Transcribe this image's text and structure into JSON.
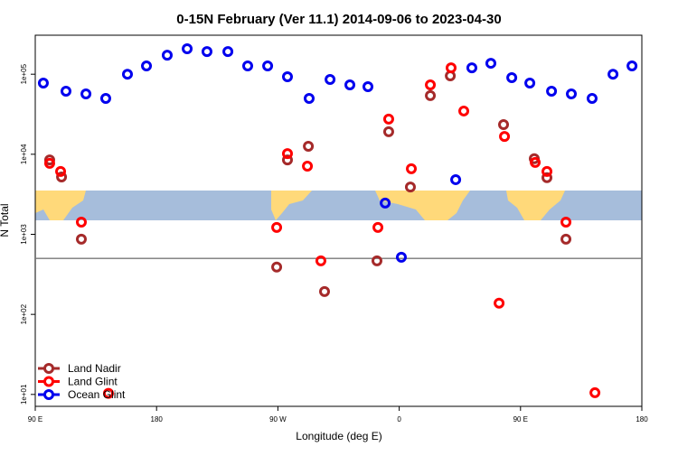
{
  "chart_data": {
    "type": "scatter",
    "title": "0-15N February (Ver 11.1)   2014-09-06 to 2023-04-30",
    "x_label": "Longitude (deg E)",
    "y_label": "N Total",
    "log_y": true,
    "xlim": [
      -270,
      180
    ],
    "xticks": [
      {
        "value": -270,
        "label": "90 E"
      },
      {
        "value": -180,
        "label": "180"
      },
      {
        "value": -90,
        "label": "90 W"
      },
      0,
      {
        "value": 90,
        "label": "90 E"
      },
      180
    ],
    "ylim": [
      7.1,
      307000
    ],
    "yticks": [
      {
        "value": 10,
        "label": "1e+01"
      },
      {
        "value": 100,
        "label": "1e+02"
      },
      {
        "value": 1000,
        "label": "1e+03"
      },
      {
        "value": 10000,
        "label": "1e+04"
      },
      {
        "value": 100000,
        "label": "1e+05"
      }
    ],
    "hline": 500,
    "legend": "bottom-left",
    "series": [
      {
        "name": "Land Nadir",
        "color": "#a52a2a",
        "x": [
          -259.3,
          -250.5,
          -235.8,
          -90.9,
          -82.9,
          -67.4,
          -55.4,
          -16.5,
          -7.8,
          8.3,
          23.1,
          37.9,
          77.4,
          100.2,
          109.6,
          123.7
        ],
        "values": [
          8500,
          5200,
          870,
          390,
          8500,
          12600,
          193,
          466,
          19100,
          3900,
          54000,
          95500,
          23500,
          8800,
          5100,
          870
        ]
      },
      {
        "name": "Land Glint",
        "color": "#ff0000",
        "x": [
          -259.3,
          -251.2,
          -235.8,
          -215.7,
          -90.9,
          -82.9,
          -68.1,
          -58.1,
          -15.8,
          -7.8,
          9.0,
          23.1,
          38.5,
          47.9,
          74.1,
          78.1,
          100.9,
          109.6,
          123.7,
          145.2
        ],
        "values": [
          7700,
          6100,
          1420,
          10.3,
          1220,
          10200,
          7100,
          466,
          1220,
          27500,
          6600,
          73600,
          120000,
          34700,
          138,
          16700,
          7900,
          6100,
          1420,
          10.5
        ]
      },
      {
        "name": "Ocean Glint",
        "color": "#0000ee",
        "x": [
          -264.0,
          -247.2,
          -232.4,
          -217.7,
          -201.6,
          -187.5,
          -172.1,
          -157.3,
          -142.6,
          -127.1,
          -112.4,
          -97.6,
          -82.9,
          -66.8,
          -51.3,
          -36.6,
          -23.2,
          -10.4,
          1.6,
          41.9,
          53.9,
          68.0,
          83.5,
          96.9,
          113.0,
          127.7,
          143.1,
          158.6,
          172.7
        ],
        "values": [
          77600,
          61400,
          56800,
          49900,
          100000,
          127000,
          173000,
          208000,
          192000,
          192000,
          127000,
          127000,
          92900,
          49900,
          86100,
          73600,
          69900,
          2460,
          518,
          4820,
          120000,
          137000,
          90600,
          77600,
          61400,
          56800,
          49900,
          100000,
          127000
        ]
      }
    ]
  }
}
